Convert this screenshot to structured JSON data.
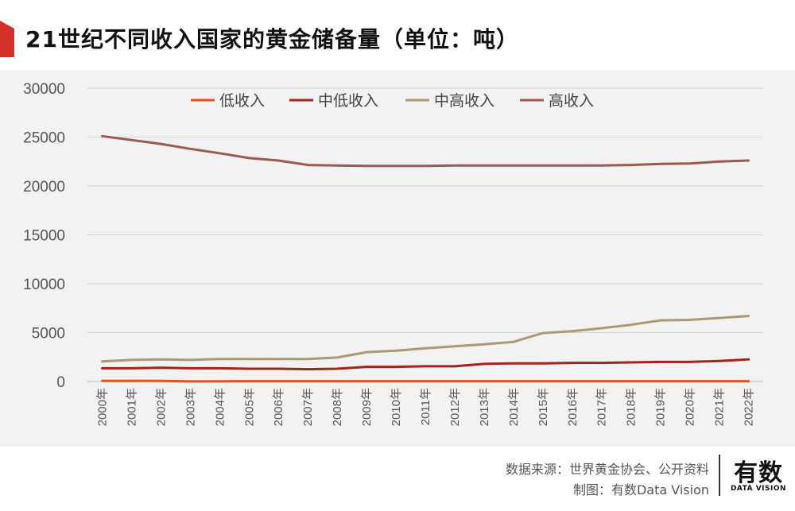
{
  "title": "21世纪不同收入国家的黄金储备量（单位：吨）",
  "colors": {
    "accent": "#d7302a"
  },
  "chart_data": {
    "type": "line",
    "categories": [
      "2000年",
      "2001年",
      "2002年",
      "2003年",
      "2004年",
      "2005年",
      "2006年",
      "2007年",
      "2008年",
      "2009年",
      "2010年",
      "2011年",
      "2012年",
      "2013年",
      "2014年",
      "2015年",
      "2016年",
      "2017年",
      "2018年",
      "2019年",
      "2020年",
      "2021年",
      "2022年"
    ],
    "series": [
      {
        "name": "低收入",
        "color": "#e0531f",
        "values": [
          60,
          60,
          55,
          10,
          20,
          30,
          30,
          30,
          30,
          30,
          30,
          30,
          30,
          30,
          30,
          30,
          30,
          30,
          30,
          30,
          30,
          30,
          30
        ]
      },
      {
        "name": "中低收入",
        "color": "#a3231f",
        "values": [
          1350,
          1350,
          1400,
          1350,
          1350,
          1300,
          1300,
          1250,
          1300,
          1500,
          1500,
          1550,
          1550,
          1800,
          1850,
          1850,
          1900,
          1900,
          1950,
          2000,
          2000,
          2100,
          2250
        ]
      },
      {
        "name": "中高收入",
        "color": "#a89a72",
        "values": [
          2050,
          2200,
          2250,
          2200,
          2300,
          2300,
          2300,
          2300,
          2450,
          3000,
          3150,
          3400,
          3600,
          3800,
          4050,
          4950,
          5150,
          5450,
          5800,
          6250,
          6300,
          6500,
          6700
        ]
      },
      {
        "name": "高收入",
        "color": "#9a5a4e",
        "values": [
          25100,
          24700,
          24300,
          23800,
          23350,
          22850,
          22600,
          22150,
          22100,
          22050,
          22050,
          22050,
          22100,
          22100,
          22100,
          22100,
          22100,
          22100,
          22150,
          22250,
          22300,
          22500,
          22600
        ]
      }
    ],
    "yticks": [
      "0",
      "5000",
      "10000",
      "15000",
      "20000",
      "25000",
      "30000"
    ],
    "ylim": [
      0,
      30000
    ],
    "grid": true,
    "legend": "top"
  },
  "footer": {
    "source": "数据来源：世界黄金协会、公开资料",
    "maker": "制图：有数Data Vision"
  },
  "brand": {
    "name": "有数",
    "sub": "DATA VISION"
  }
}
